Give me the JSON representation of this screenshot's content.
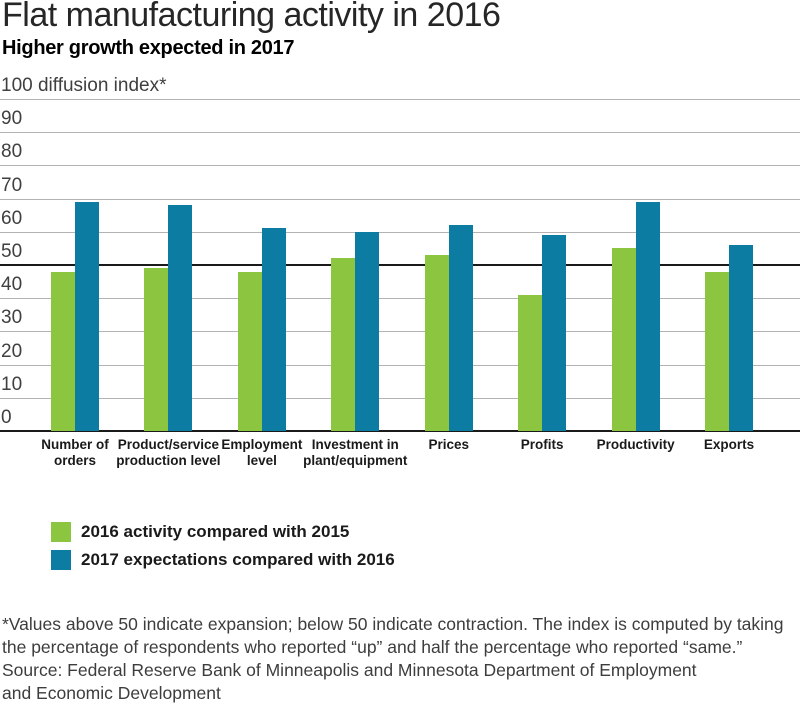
{
  "header": {
    "title": "Flat manufacturing activity in 2016",
    "subtitle": "Higher growth expected in 2017"
  },
  "chart_data": {
    "type": "bar",
    "axis_title": "100 diffusion index*",
    "ylim": [
      0,
      100
    ],
    "ytick_step": 10,
    "threshold_value": 50,
    "grid": true,
    "legend_position": "bottom-left",
    "categories": [
      "Number of\norders",
      "Product/service\nproduction level",
      "Employment\nlevel",
      "Investment in\nplant/equipment",
      "Prices",
      "Profits",
      "Productivity",
      "Exports"
    ],
    "series": [
      {
        "name": "2016 activity compared with 2015",
        "color": "#8CC540",
        "values": [
          48,
          49,
          48,
          52,
          53,
          41,
          55,
          48
        ]
      },
      {
        "name": "2017 expectations compared with 2016",
        "color": "#0D7CA3",
        "values": [
          69,
          68,
          61,
          60,
          62,
          59,
          69,
          56
        ]
      }
    ]
  },
  "colors": {
    "gridline": "#b3b3b3",
    "threshold_line": "#1a1a1a",
    "text_dark": "#262626",
    "text_note": "#3d3d3d"
  },
  "notes": {
    "footnote": [
      "*Values above 50 indicate expansion; below 50 indicate contraction. The index is computed by taking",
      "the percentage of respondents who reported “up” and half the percentage who reported “same.”"
    ],
    "source": [
      "Source: Federal Reserve Bank of Minneapolis and Minnesota Department of Employment",
      "and Economic Development"
    ]
  }
}
